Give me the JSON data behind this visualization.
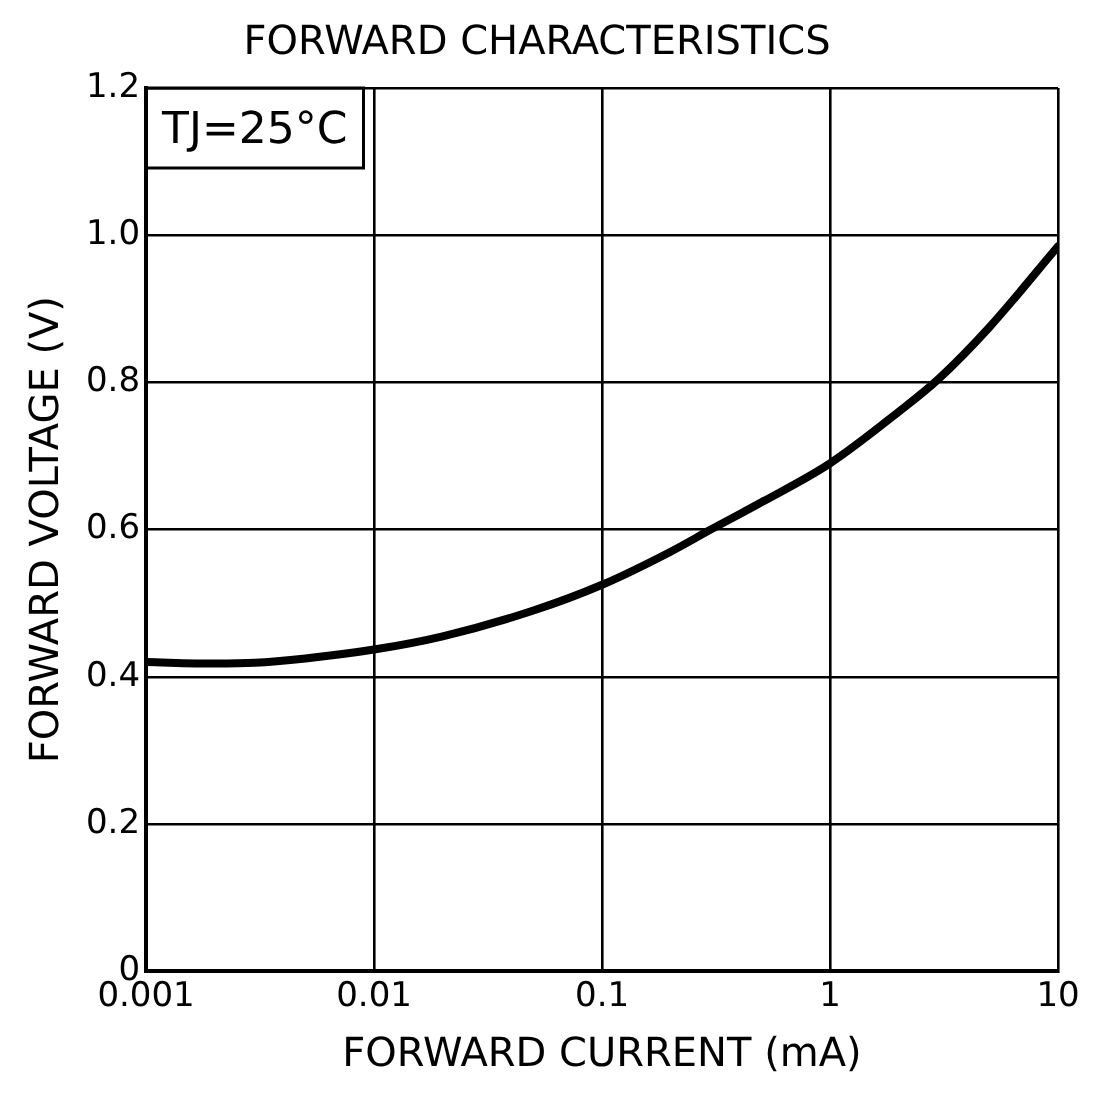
{
  "chart_data": {
    "type": "line",
    "title": "FORWARD CHARACTERISTICS",
    "xlabel": "FORWARD CURRENT (mA)",
    "ylabel": "FORWARD VOLTAGE (V)",
    "annotations": [
      "TJ=25°C"
    ],
    "log": "x",
    "grid": true,
    "marker": "none",
    "line_style": "solid",
    "xlim": [
      0.001,
      10
    ],
    "xticks": [
      0.001,
      0.01,
      0.1,
      1,
      10
    ],
    "ylim": [
      0,
      1.2
    ],
    "yticks": [
      0,
      0.2,
      0.4,
      0.6,
      0.8,
      {
        "value": 1,
        "label": "1.0"
      },
      1.2
    ],
    "series": [
      {
        "color": "#000000",
        "x": [
          0.001,
          0.002,
          0.003,
          0.005,
          0.01,
          0.02,
          0.05,
          0.1,
          0.2,
          0.3,
          0.5,
          1,
          2,
          3,
          5,
          10
        ],
        "values": [
          0.42,
          0.418,
          0.419,
          0.425,
          0.437,
          0.455,
          0.49,
          0.525,
          0.57,
          0.6,
          0.637,
          0.69,
          0.76,
          0.805,
          0.875,
          0.985
        ]
      }
    ]
  }
}
